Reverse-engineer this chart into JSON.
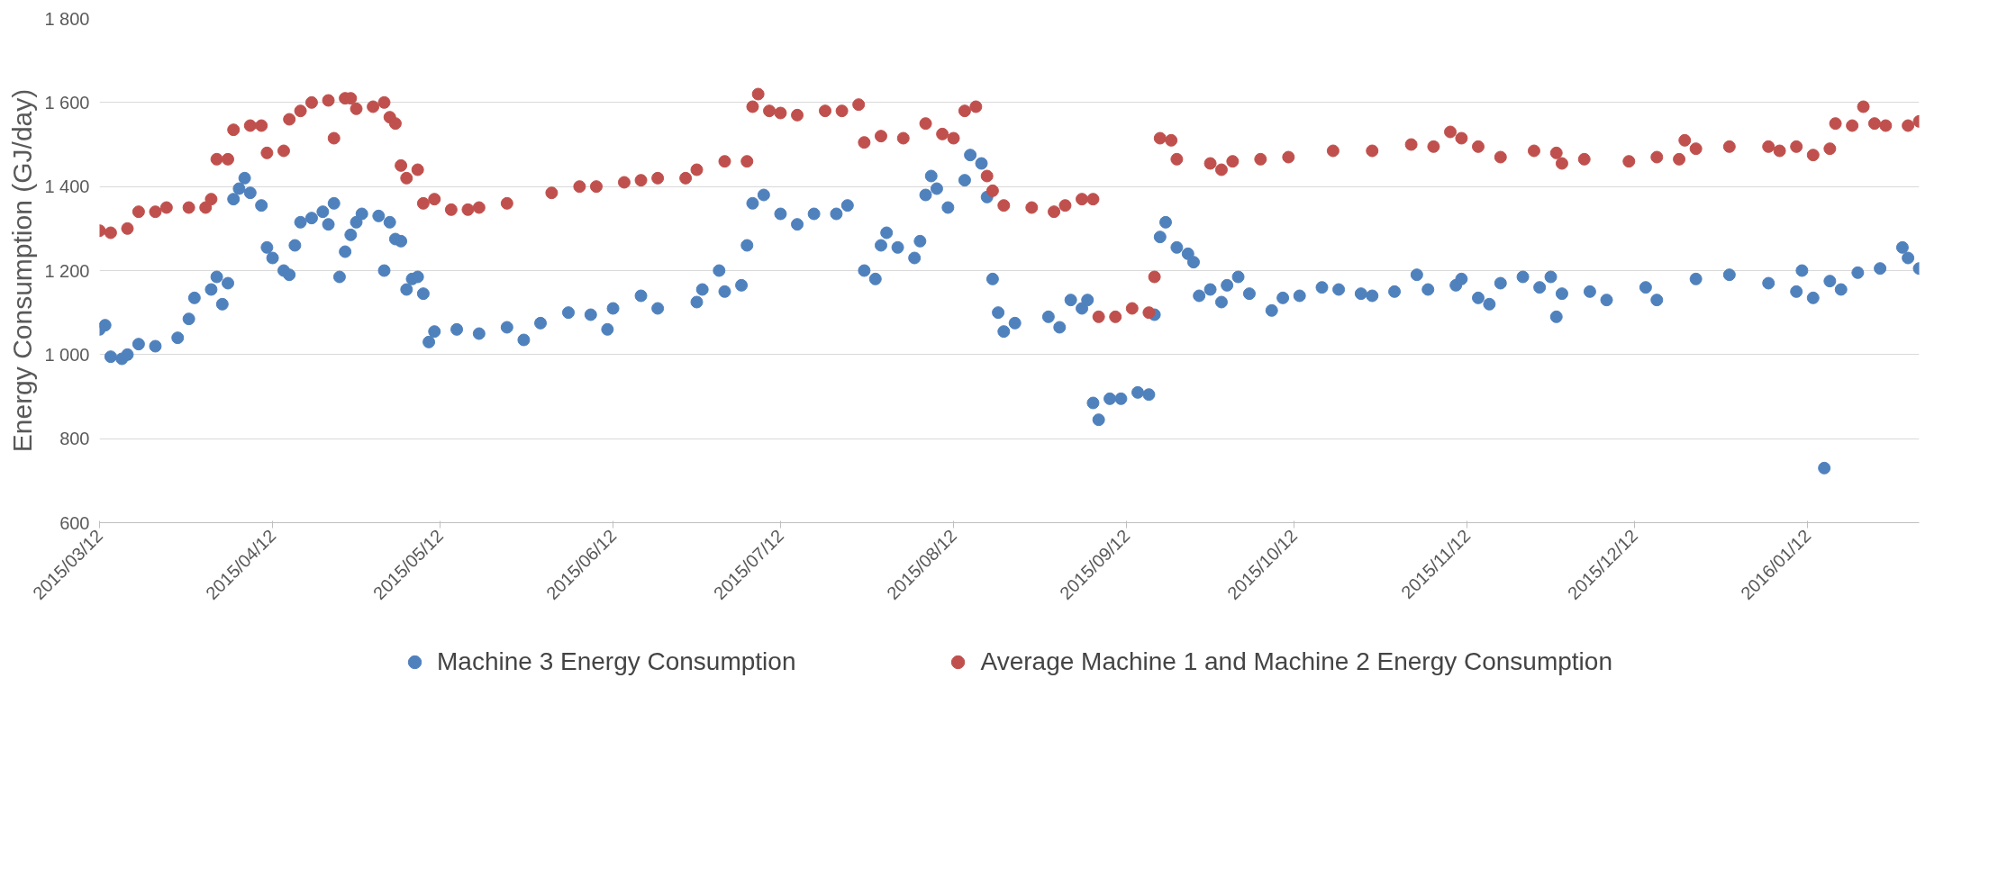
{
  "chart_data": {
    "type": "scatter",
    "ylabel": "Energy Consumption (GJ/day)",
    "marker": "circle",
    "grid": "y",
    "legend": "bottom",
    "xlim": [
      "2015-03-12",
      "2016-02-01"
    ],
    "xticks": [
      {
        "value": "2015-03-12",
        "label": "2015/03/12"
      },
      {
        "value": "2015-04-12",
        "label": "2015/04/12"
      },
      {
        "value": "2015-05-12",
        "label": "2015/05/12"
      },
      {
        "value": "2015-06-12",
        "label": "2015/06/12"
      },
      {
        "value": "2015-07-12",
        "label": "2015/07/12"
      },
      {
        "value": "2015-08-12",
        "label": "2015/08/12"
      },
      {
        "value": "2015-09-12",
        "label": "2015/09/12"
      },
      {
        "value": "2015-10-12",
        "label": "2015/10/12"
      },
      {
        "value": "2015-11-12",
        "label": "2015/11/12"
      },
      {
        "value": "2015-12-12",
        "label": "2015/12/12"
      },
      {
        "value": "2016-01-12",
        "label": "2016/01/12"
      }
    ],
    "ylim": [
      600,
      1800
    ],
    "yticks": [
      600,
      800,
      {
        "value": 1000,
        "label": "1 000"
      },
      {
        "value": 1200,
        "label": "1 200"
      },
      {
        "value": 1400,
        "label": "1 400"
      },
      {
        "value": 1600,
        "label": "1 600"
      },
      {
        "value": 1800,
        "label": "1 800"
      }
    ],
    "series": [
      {
        "name": "Machine 3 Energy Consumption",
        "color": "#4f81bd",
        "x": [
          "2015-03-12",
          "2015-03-13",
          "2015-03-14",
          "2015-03-16",
          "2015-03-17",
          "2015-03-19",
          "2015-03-22",
          "2015-03-26",
          "2015-03-28",
          "2015-03-29",
          "2015-04-01",
          "2015-04-02",
          "2015-04-03",
          "2015-04-04",
          "2015-04-05",
          "2015-04-06",
          "2015-04-07",
          "2015-04-08",
          "2015-04-10",
          "2015-04-11",
          "2015-04-12",
          "2015-04-14",
          "2015-04-15",
          "2015-04-16",
          "2015-04-17",
          "2015-04-19",
          "2015-04-21",
          "2015-04-22",
          "2015-04-23",
          "2015-04-24",
          "2015-04-25",
          "2015-04-26",
          "2015-04-27",
          "2015-04-28",
          "2015-05-01",
          "2015-05-02",
          "2015-05-03",
          "2015-05-04",
          "2015-05-05",
          "2015-05-06",
          "2015-05-07",
          "2015-05-08",
          "2015-05-09",
          "2015-05-10",
          "2015-05-11",
          "2015-05-15",
          "2015-05-19",
          "2015-05-24",
          "2015-05-27",
          "2015-05-30",
          "2015-06-04",
          "2015-06-08",
          "2015-06-11",
          "2015-06-12",
          "2015-06-17",
          "2015-06-20",
          "2015-06-27",
          "2015-06-28",
          "2015-07-01",
          "2015-07-02",
          "2015-07-05",
          "2015-07-06",
          "2015-07-07",
          "2015-07-09",
          "2015-07-12",
          "2015-07-15",
          "2015-07-18",
          "2015-07-22",
          "2015-07-24",
          "2015-07-27",
          "2015-07-29",
          "2015-07-30",
          "2015-07-31",
          "2015-08-02",
          "2015-08-05",
          "2015-08-06",
          "2015-08-07",
          "2015-08-08",
          "2015-08-09",
          "2015-08-11",
          "2015-08-14",
          "2015-08-15",
          "2015-08-17",
          "2015-08-18",
          "2015-08-19",
          "2015-08-20",
          "2015-08-21",
          "2015-08-23",
          "2015-08-29",
          "2015-08-31",
          "2015-09-02",
          "2015-09-04",
          "2015-09-05",
          "2015-09-06",
          "2015-09-07",
          "2015-09-09",
          "2015-09-11",
          "2015-09-14",
          "2015-09-16",
          "2015-09-17",
          "2015-09-18",
          "2015-09-19",
          "2015-09-21",
          "2015-09-23",
          "2015-09-24",
          "2015-09-25",
          "2015-09-27",
          "2015-09-29",
          "2015-09-30",
          "2015-10-02",
          "2015-10-04",
          "2015-10-08",
          "2015-10-10",
          "2015-10-13",
          "2015-10-17",
          "2015-10-20",
          "2015-10-24",
          "2015-10-26",
          "2015-10-30",
          "2015-11-03",
          "2015-11-05",
          "2015-11-10",
          "2015-11-11",
          "2015-11-14",
          "2015-11-16",
          "2015-11-18",
          "2015-11-22",
          "2015-11-25",
          "2015-11-27",
          "2015-11-28",
          "2015-11-29",
          "2015-12-04",
          "2015-12-07",
          "2015-12-14",
          "2015-12-16",
          "2015-12-23",
          "2015-12-29",
          "2016-01-05",
          "2016-01-10",
          "2016-01-11",
          "2016-01-13",
          "2016-01-15",
          "2016-01-16",
          "2016-01-18",
          "2016-01-21",
          "2016-01-25",
          "2016-01-29",
          "2016-01-30",
          "2016-02-01"
        ],
        "values": [
          1060,
          1070,
          995,
          990,
          1000,
          1025,
          1020,
          1040,
          1085,
          1135,
          1155,
          1185,
          1120,
          1170,
          1370,
          1395,
          1420,
          1385,
          1355,
          1255,
          1230,
          1200,
          1190,
          1260,
          1315,
          1325,
          1340,
          1310,
          1360,
          1185,
          1245,
          1285,
          1315,
          1335,
          1330,
          1200,
          1315,
          1275,
          1270,
          1155,
          1180,
          1185,
          1145,
          1030,
          1055,
          1060,
          1050,
          1065,
          1035,
          1075,
          1100,
          1095,
          1060,
          1110,
          1140,
          1110,
          1125,
          1155,
          1200,
          1150,
          1165,
          1260,
          1360,
          1380,
          1335,
          1310,
          1335,
          1335,
          1355,
          1200,
          1180,
          1260,
          1290,
          1255,
          1230,
          1270,
          1380,
          1425,
          1395,
          1350,
          1415,
          1475,
          1455,
          1375,
          1180,
          1100,
          1055,
          1075,
          1090,
          1065,
          1130,
          1110,
          1130,
          885,
          845,
          895,
          895,
          910,
          905,
          1095,
          1280,
          1315,
          1255,
          1240,
          1220,
          1140,
          1155,
          1125,
          1165,
          1185,
          1145,
          1105,
          1135,
          1140,
          1160,
          1155,
          1145,
          1140,
          1150,
          1190,
          1155,
          1165,
          1180,
          1135,
          1120,
          1170,
          1185,
          1160,
          1185,
          1090,
          1145,
          1150,
          1130,
          1160,
          1130,
          1180,
          1190,
          1170,
          1150,
          1200,
          1135,
          730,
          1175,
          1155,
          1195,
          1205,
          1255,
          1230,
          1205
        ]
      },
      {
        "name": "Average Machine 1 and Machine 2 Energy Consumption",
        "color": "#c0504d",
        "x": [
          "2015-03-12",
          "2015-03-14",
          "2015-03-17",
          "2015-03-19",
          "2015-03-22",
          "2015-03-24",
          "2015-03-28",
          "2015-03-31",
          "2015-04-01",
          "2015-04-02",
          "2015-04-04",
          "2015-04-05",
          "2015-04-08",
          "2015-04-10",
          "2015-04-11",
          "2015-04-14",
          "2015-04-15",
          "2015-04-17",
          "2015-04-19",
          "2015-04-22",
          "2015-04-23",
          "2015-04-25",
          "2015-04-26",
          "2015-04-27",
          "2015-04-30",
          "2015-05-02",
          "2015-05-03",
          "2015-05-04",
          "2015-05-05",
          "2015-05-06",
          "2015-05-08",
          "2015-05-09",
          "2015-05-11",
          "2015-05-14",
          "2015-05-17",
          "2015-05-19",
          "2015-05-24",
          "2015-06-01",
          "2015-06-06",
          "2015-06-09",
          "2015-06-14",
          "2015-06-17",
          "2015-06-20",
          "2015-06-25",
          "2015-06-27",
          "2015-07-02",
          "2015-07-06",
          "2015-07-07",
          "2015-07-08",
          "2015-07-10",
          "2015-07-12",
          "2015-07-15",
          "2015-07-20",
          "2015-07-23",
          "2015-07-26",
          "2015-07-27",
          "2015-07-30",
          "2015-08-03",
          "2015-08-07",
          "2015-08-10",
          "2015-08-12",
          "2015-08-14",
          "2015-08-16",
          "2015-08-18",
          "2015-08-19",
          "2015-08-21",
          "2015-08-26",
          "2015-08-30",
          "2015-09-01",
          "2015-09-04",
          "2015-09-06",
          "2015-09-07",
          "2015-09-10",
          "2015-09-13",
          "2015-09-16",
          "2015-09-17",
          "2015-09-18",
          "2015-09-20",
          "2015-09-21",
          "2015-09-27",
          "2015-09-29",
          "2015-10-01",
          "2015-10-06",
          "2015-10-11",
          "2015-10-19",
          "2015-10-26",
          "2015-11-02",
          "2015-11-06",
          "2015-11-09",
          "2015-11-11",
          "2015-11-14",
          "2015-11-18",
          "2015-11-24",
          "2015-11-28",
          "2015-11-29",
          "2015-12-03",
          "2015-12-11",
          "2015-12-16",
          "2015-12-20",
          "2015-12-21",
          "2015-12-23",
          "2015-12-29",
          "2016-01-05",
          "2016-01-07",
          "2016-01-10",
          "2016-01-13",
          "2016-01-16",
          "2016-01-17",
          "2016-01-20",
          "2016-01-22",
          "2016-01-24",
          "2016-01-26",
          "2016-01-30",
          "2016-02-01"
        ],
        "values": [
          1295,
          1290,
          1300,
          1340,
          1340,
          1350,
          1350,
          1350,
          1370,
          1465,
          1465,
          1535,
          1545,
          1545,
          1480,
          1485,
          1560,
          1580,
          1600,
          1605,
          1515,
          1610,
          1610,
          1585,
          1590,
          1600,
          1565,
          1550,
          1450,
          1420,
          1440,
          1360,
          1370,
          1345,
          1345,
          1350,
          1360,
          1385,
          1400,
          1400,
          1410,
          1415,
          1420,
          1420,
          1440,
          1460,
          1460,
          1590,
          1620,
          1580,
          1575,
          1570,
          1580,
          1580,
          1595,
          1505,
          1520,
          1515,
          1550,
          1525,
          1515,
          1580,
          1590,
          1425,
          1390,
          1355,
          1350,
          1340,
          1355,
          1370,
          1370,
          1090,
          1090,
          1110,
          1100,
          1185,
          1515,
          1510,
          1465,
          1455,
          1440,
          1460,
          1465,
          1470,
          1485,
          1485,
          1500,
          1495,
          1530,
          1515,
          1495,
          1470,
          1485,
          1480,
          1455,
          1465,
          1460,
          1470,
          1465,
          1510,
          1490,
          1495,
          1495,
          1485,
          1495,
          1475,
          1490,
          1550,
          1545,
          1590,
          1550,
          1545,
          1545,
          1555
        ]
      }
    ]
  }
}
